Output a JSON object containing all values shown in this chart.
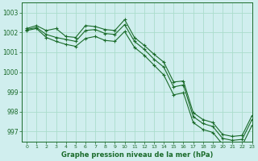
{
  "title": "Graphe pression niveau de la mer (hPa)",
  "background_color": "#d0eeee",
  "grid_color": "#aaddcc",
  "line_color": "#1a6b2a",
  "xlim": [
    -0.5,
    23
  ],
  "ylim": [
    996.5,
    1003.5
  ],
  "yticks": [
    997,
    998,
    999,
    1000,
    1001,
    1002,
    1003
  ],
  "xticks": [
    0,
    1,
    2,
    3,
    4,
    5,
    6,
    7,
    8,
    9,
    10,
    11,
    12,
    13,
    14,
    15,
    16,
    17,
    18,
    19,
    20,
    21,
    22,
    23
  ],
  "series": [
    [
      1002.2,
      1002.35,
      1002.1,
      1002.2,
      1001.8,
      1001.75,
      1002.35,
      1002.3,
      1002.15,
      1002.1,
      1002.65,
      1001.75,
      1001.35,
      1000.9,
      1000.5,
      999.5,
      999.55,
      997.95,
      997.6,
      997.45,
      996.85,
      996.75,
      996.8,
      997.8
    ],
    [
      1002.15,
      1002.25,
      1001.9,
      1001.75,
      1001.65,
      1001.55,
      1002.1,
      1002.15,
      1001.95,
      1001.9,
      1002.4,
      1001.55,
      1001.15,
      1000.65,
      1000.25,
      999.25,
      999.35,
      997.75,
      997.4,
      997.25,
      996.65,
      996.55,
      996.6,
      997.6
    ],
    [
      1002.1,
      1002.2,
      1001.75,
      1001.55,
      1001.4,
      1001.3,
      1001.7,
      1001.8,
      1001.6,
      1001.55,
      1002.05,
      1001.25,
      1000.85,
      1000.35,
      999.85,
      998.85,
      998.95,
      997.45,
      997.1,
      996.95,
      996.35,
      996.25,
      996.3,
      997.3
    ]
  ]
}
